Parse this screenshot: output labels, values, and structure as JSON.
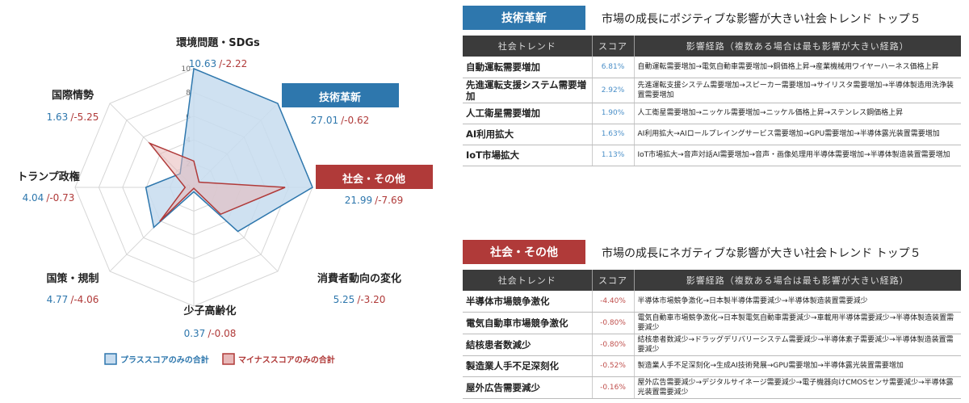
{
  "colors": {
    "plus": "#2e77ad",
    "minus": "#b03a39",
    "plus_fill": "#c7dcef",
    "minus_fill": "#e8b8b8",
    "grid": "#d6d6d6"
  },
  "chart_data": {
    "type": "radar",
    "axes": [
      "環境問題・SDGs",
      "技術革新",
      "社会・その他",
      "消費者動向の変化",
      "少子高齢化",
      "国策・規制",
      "トランプ政権",
      "国際情勢"
    ],
    "series": [
      {
        "name": "プラススコアのみの合計",
        "values": [
          10.63,
          27.01,
          21.99,
          5.25,
          0.37,
          4.77,
          4.04,
          1.63
        ]
      },
      {
        "name": "マイナススコアのみの合計",
        "values": [
          -2.22,
          -0.62,
          -7.69,
          -3.2,
          -0.08,
          -4.06,
          -0.73,
          -5.25
        ]
      }
    ],
    "tick_labels": [
      "0",
      "2",
      "4",
      "6",
      "8",
      "10"
    ],
    "labels": [
      {
        "name": "環境問題・SDGs",
        "plus": "10.63",
        "minus": "/-2.22"
      },
      {
        "name": "技術革新",
        "plus": "27.01",
        "minus": "/-0.62"
      },
      {
        "name": "社会・その他",
        "plus": "21.99",
        "minus": "/-7.69"
      },
      {
        "name": "消費者動向の変化",
        "plus": "5.25",
        "minus": "/-3.20"
      },
      {
        "name": "少子高齢化",
        "plus": "0.37",
        "minus": "/-0.08"
      },
      {
        "name": "国策・規制",
        "plus": "4.77",
        "minus": "/-4.06"
      },
      {
        "name": "トランプ政権",
        "plus": "4.04",
        "minus": "/-0.73"
      },
      {
        "name": "国際情勢",
        "plus": "1.63",
        "minus": "/-5.25"
      }
    ],
    "legend": [
      "プラススコアのみの合計",
      "マイナススコアのみの合計"
    ]
  },
  "top": {
    "badge": "技術革新",
    "title": "市場の成長にポジティブな影響が大きい社会トレンド トップ５",
    "headers": [
      "社会トレンド",
      "スコア",
      "影響経路（複数ある場合は最も影響が大きい経路）"
    ],
    "rows": [
      {
        "trend": "自動運転需要増加",
        "score": "6.81%",
        "path": "自動運転需要増加→電気自動車需要増加→銅価格上昇→産業機械用ワイヤーハーネス価格上昇"
      },
      {
        "trend": "先進運転支援システム需要増加",
        "score": "2.92%",
        "path": "先進運転支援システム需要増加→スピーカー需要増加→サイリスタ需要増加→半導体製造用洗浄装置需要増加"
      },
      {
        "trend": "人工衛星需要増加",
        "score": "1.90%",
        "path": "人工衛星需要増加→ニッケル需要増加→ニッケル価格上昇→ステンレス鋼価格上昇"
      },
      {
        "trend": "AI利用拡大",
        "score": "1.63%",
        "path": "AI利用拡大→AIロールプレイングサービス需要増加→GPU需要増加→半導体露光装置需要増加"
      },
      {
        "trend": "IoT市場拡大",
        "score": "1.13%",
        "path": "IoT市場拡大→音声対話AI需要増加→音声・画像処理用半導体需要増加→半導体製造装置需要増加"
      }
    ]
  },
  "bottom": {
    "badge": "社会・その他",
    "title": "市場の成長にネガティブな影響が大きい社会トレンド トップ５",
    "headers": [
      "社会トレンド",
      "スコア",
      "影響経路（複数ある場合は最も影響が大きい経路）"
    ],
    "rows": [
      {
        "trend": "半導体市場競争激化",
        "score": "-4.40%",
        "path": "半導体市場競争激化→日本製半導体需要減少→半導体製造装置需要減少"
      },
      {
        "trend": "電気自動車市場競争激化",
        "score": "-0.80%",
        "path": "電気自動車市場競争激化→日本製電気自動車需要減少→車載用半導体需要減少→半導体製造装置需要減少"
      },
      {
        "trend": "結核患者数減少",
        "score": "-0.80%",
        "path": "結核患者数減少→ドラッグデリバリーシステム需要減少→半導体素子需要減少→半導体製造装置需要減少"
      },
      {
        "trend": "製造業人手不足深刻化",
        "score": "-0.52%",
        "path": "製造業人手不足深刻化→生成AI技術発展→GPU需要増加→半導体露光装置需要増加"
      },
      {
        "trend": "屋外広告需要減少",
        "score": "-0.16%",
        "path": "屋外広告需要減少→デジタルサイネージ需要減少→電子機器向けCMOSセンサ需要減少→半導体露光装置需要減少"
      }
    ]
  }
}
